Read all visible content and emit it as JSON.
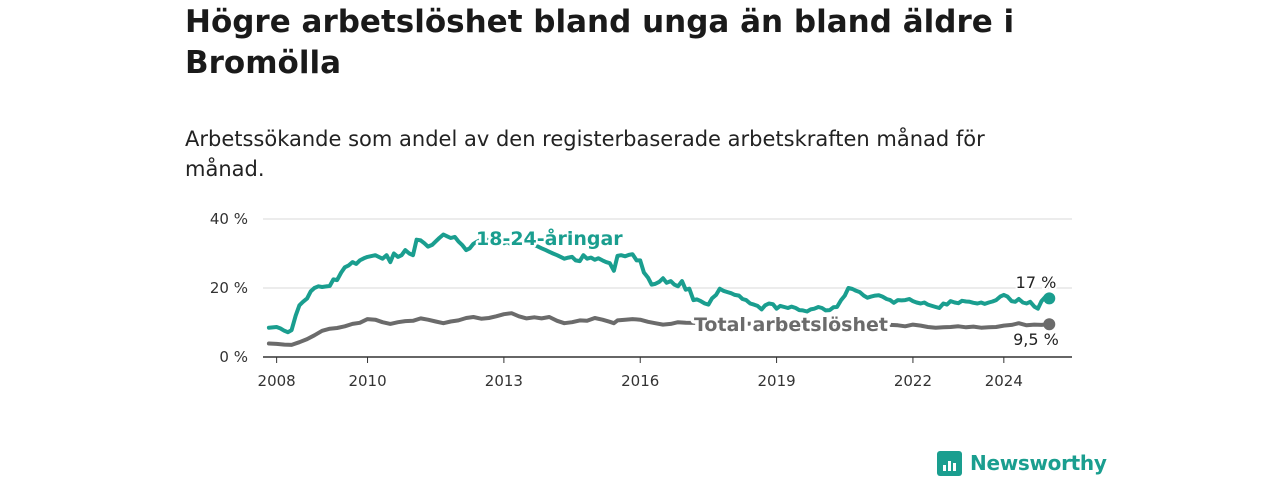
{
  "title": "Högre arbetslöshet bland unga än bland äldre i Bromölla",
  "subtitle": "Arbetssökande som andel av den registerbaserade arbetskraften månad för månad.",
  "brand": {
    "name": "Newsworthy",
    "color": "#1a9e8f"
  },
  "chart_data": {
    "type": "line",
    "title": "Högre arbetslöshet bland unga än bland äldre i Bromölla",
    "xlabel": "",
    "ylabel": "",
    "ylim": [
      0,
      40
    ],
    "xlim": [
      2007.7,
      2025.5
    ],
    "y_ticks": [
      {
        "value": 0,
        "label": "0 %"
      },
      {
        "value": 20,
        "label": "20 %"
      },
      {
        "value": 40,
        "label": "40 %"
      }
    ],
    "x_ticks": [
      {
        "value": 2008,
        "label": "2008"
      },
      {
        "value": 2010,
        "label": "2010"
      },
      {
        "value": 2013,
        "label": "2013"
      },
      {
        "value": 2016,
        "label": "2016"
      },
      {
        "value": 2019,
        "label": "2019"
      },
      {
        "value": 2022,
        "label": "2022"
      },
      {
        "value": 2024,
        "label": "2024"
      }
    ],
    "grid": true,
    "series": [
      {
        "name": "18-24-åringar",
        "color": "#1a9e8f",
        "end_label": "17 %",
        "points": [
          [
            2007.83,
            8.5
          ],
          [
            2008.0,
            8.7
          ],
          [
            2008.08,
            8.3
          ],
          [
            2008.17,
            7.6
          ],
          [
            2008.25,
            7.2
          ],
          [
            2008.33,
            7.8
          ],
          [
            2008.42,
            12
          ],
          [
            2008.5,
            15
          ],
          [
            2008.58,
            16
          ],
          [
            2008.67,
            17
          ],
          [
            2008.75,
            19
          ],
          [
            2008.83,
            20
          ],
          [
            2008.92,
            20.5
          ],
          [
            2009.0,
            20.3
          ],
          [
            2009.17,
            20.6
          ],
          [
            2009.25,
            22.5
          ],
          [
            2009.33,
            22.3
          ],
          [
            2009.42,
            24.5
          ],
          [
            2009.5,
            26
          ],
          [
            2009.58,
            26.5
          ],
          [
            2009.67,
            27.5
          ],
          [
            2009.75,
            27
          ],
          [
            2009.83,
            28
          ],
          [
            2009.92,
            28.6
          ],
          [
            2010.0,
            29
          ],
          [
            2010.17,
            29.5
          ],
          [
            2010.33,
            28.5
          ],
          [
            2010.42,
            29.5
          ],
          [
            2010.5,
            27.5
          ],
          [
            2010.58,
            30
          ],
          [
            2010.67,
            29
          ],
          [
            2010.75,
            29.5
          ],
          [
            2010.83,
            31
          ],
          [
            2010.92,
            30
          ],
          [
            2011.0,
            29.5
          ],
          [
            2011.08,
            34
          ],
          [
            2011.17,
            33.8
          ],
          [
            2011.25,
            33
          ],
          [
            2011.33,
            32
          ],
          [
            2011.42,
            32.5
          ],
          [
            2011.5,
            33.5
          ],
          [
            2011.58,
            34.5
          ],
          [
            2011.67,
            35.5
          ],
          [
            2011.75,
            35
          ],
          [
            2011.83,
            34.5
          ],
          [
            2011.92,
            34.8
          ],
          [
            2012.0,
            33.5
          ],
          [
            2012.08,
            32.5
          ],
          [
            2012.17,
            31
          ],
          [
            2012.25,
            31.5
          ],
          [
            2012.33,
            32.8
          ],
          [
            2012.42,
            33.5
          ],
          [
            2012.5,
            34
          ],
          [
            2012.58,
            34.5
          ],
          [
            2012.67,
            33.5
          ],
          [
            2012.75,
            34
          ],
          [
            2012.83,
            33.2
          ],
          [
            2012.92,
            33.5
          ],
          [
            2013.0,
            33
          ],
          [
            2013.08,
            33.4
          ],
          [
            2013.17,
            32.5
          ],
          [
            2013.25,
            33
          ],
          [
            2013.33,
            33.5
          ],
          [
            2013.42,
            34
          ],
          [
            2013.5,
            34.3
          ],
          [
            2013.58,
            33.5
          ],
          [
            2013.67,
            32.5
          ],
          [
            2013.75,
            32
          ],
          [
            2013.83,
            31.5
          ],
          [
            2013.92,
            31
          ],
          [
            2014.0,
            30.5
          ],
          [
            2014.08,
            30
          ],
          [
            2014.17,
            29.5
          ],
          [
            2014.25,
            29
          ],
          [
            2014.33,
            28.5
          ],
          [
            2014.42,
            28.8
          ],
          [
            2014.5,
            29
          ],
          [
            2014.58,
            28
          ],
          [
            2014.67,
            27.8
          ],
          [
            2014.75,
            29.5
          ],
          [
            2014.83,
            28.5
          ],
          [
            2014.92,
            28.8
          ],
          [
            2015.0,
            28.2
          ],
          [
            2015.08,
            28.6
          ],
          [
            2015.17,
            28
          ],
          [
            2015.25,
            27.5
          ],
          [
            2015.33,
            27.2
          ],
          [
            2015.42,
            25
          ],
          [
            2015.5,
            29.3
          ],
          [
            2015.58,
            29.5
          ],
          [
            2015.67,
            29.2
          ],
          [
            2015.75,
            29.6
          ],
          [
            2015.83,
            29.8
          ],
          [
            2015.92,
            28
          ],
          [
            2016.0,
            28
          ],
          [
            2016.08,
            24.5
          ],
          [
            2016.17,
            23
          ],
          [
            2016.25,
            21
          ],
          [
            2016.33,
            21.2
          ],
          [
            2016.42,
            21.8
          ],
          [
            2016.5,
            22.8
          ],
          [
            2016.58,
            21.5
          ],
          [
            2016.67,
            22
          ],
          [
            2016.75,
            21
          ],
          [
            2016.83,
            20.5
          ],
          [
            2016.92,
            22
          ],
          [
            2017.0,
            19.5
          ],
          [
            2017.08,
            19.8
          ],
          [
            2017.17,
            16.5
          ],
          [
            2017.25,
            16.7
          ],
          [
            2017.33,
            16.2
          ],
          [
            2017.42,
            15.5
          ],
          [
            2017.5,
            15.2
          ],
          [
            2017.58,
            17
          ],
          [
            2017.67,
            18
          ],
          [
            2017.75,
            19.8
          ],
          [
            2017.83,
            19.2
          ],
          [
            2017.92,
            18.8
          ],
          [
            2018.0,
            18.5
          ],
          [
            2018.08,
            18
          ],
          [
            2018.17,
            17.8
          ],
          [
            2018.25,
            16.8
          ],
          [
            2018.33,
            16.5
          ],
          [
            2018.42,
            15.5
          ],
          [
            2018.5,
            15.2
          ],
          [
            2018.58,
            14.8
          ],
          [
            2018.67,
            13.8
          ],
          [
            2018.75,
            15
          ],
          [
            2018.83,
            15.5
          ],
          [
            2018.92,
            15.3
          ],
          [
            2019.0,
            14
          ],
          [
            2019.08,
            14.8
          ],
          [
            2019.17,
            14.5
          ],
          [
            2019.25,
            14.2
          ],
          [
            2019.33,
            14.6
          ],
          [
            2019.42,
            14.2
          ],
          [
            2019.5,
            13.6
          ],
          [
            2019.58,
            13.5
          ],
          [
            2019.67,
            13.2
          ],
          [
            2019.75,
            13.8
          ],
          [
            2019.83,
            14
          ],
          [
            2019.92,
            14.5
          ],
          [
            2020.0,
            14.2
          ],
          [
            2020.08,
            13.5
          ],
          [
            2020.17,
            13.6
          ],
          [
            2020.25,
            14.4
          ],
          [
            2020.33,
            14.5
          ],
          [
            2020.42,
            16.5
          ],
          [
            2020.5,
            17.8
          ],
          [
            2020.58,
            20
          ],
          [
            2020.67,
            19.7
          ],
          [
            2020.75,
            19.2
          ],
          [
            2020.83,
            18.8
          ],
          [
            2020.92,
            17.8
          ],
          [
            2021.0,
            17.2
          ],
          [
            2021.08,
            17.5
          ],
          [
            2021.17,
            17.8
          ],
          [
            2021.25,
            17.9
          ],
          [
            2021.33,
            17.5
          ],
          [
            2021.42,
            16.8
          ],
          [
            2021.5,
            16.5
          ],
          [
            2021.58,
            15.7
          ],
          [
            2021.67,
            16.5
          ],
          [
            2021.75,
            16.4
          ],
          [
            2021.83,
            16.5
          ],
          [
            2021.92,
            16.8
          ],
          [
            2022.0,
            16.2
          ],
          [
            2022.08,
            15.8
          ],
          [
            2022.17,
            15.5
          ],
          [
            2022.25,
            15.8
          ],
          [
            2022.33,
            15.2
          ],
          [
            2022.42,
            14.8
          ],
          [
            2022.5,
            14.5
          ],
          [
            2022.58,
            14.2
          ],
          [
            2022.67,
            15.5
          ],
          [
            2022.75,
            15.2
          ],
          [
            2022.83,
            16.2
          ],
          [
            2022.92,
            15.8
          ],
          [
            2023.0,
            15.6
          ],
          [
            2023.08,
            16.3
          ],
          [
            2023.17,
            16.1
          ],
          [
            2023.25,
            16
          ],
          [
            2023.33,
            15.7
          ],
          [
            2023.42,
            15.5
          ],
          [
            2023.5,
            15.8
          ],
          [
            2023.58,
            15.4
          ],
          [
            2023.67,
            15.8
          ],
          [
            2023.75,
            16.1
          ],
          [
            2023.83,
            16.5
          ],
          [
            2023.92,
            17.5
          ],
          [
            2024.0,
            18
          ],
          [
            2024.08,
            17.5
          ],
          [
            2024.17,
            16.2
          ],
          [
            2024.25,
            16
          ],
          [
            2024.33,
            16.8
          ],
          [
            2024.42,
            15.8
          ],
          [
            2024.5,
            15.5
          ],
          [
            2024.58,
            16
          ],
          [
            2024.67,
            14.6
          ],
          [
            2024.75,
            14
          ],
          [
            2024.83,
            16.2
          ],
          [
            2024.92,
            17.5
          ],
          [
            2025.0,
            17
          ]
        ]
      },
      {
        "name": "Total arbetslöshet",
        "color": "#6b6b6b",
        "end_label": "9,5 %",
        "points": [
          [
            2007.83,
            3.9
          ],
          [
            2008.0,
            3.8
          ],
          [
            2008.17,
            3.6
          ],
          [
            2008.33,
            3.5
          ],
          [
            2008.5,
            4.3
          ],
          [
            2008.67,
            5.2
          ],
          [
            2008.83,
            6.3
          ],
          [
            2009.0,
            7.6
          ],
          [
            2009.17,
            8.2
          ],
          [
            2009.33,
            8.4
          ],
          [
            2009.5,
            8.9
          ],
          [
            2009.67,
            9.6
          ],
          [
            2009.83,
            9.9
          ],
          [
            2010.0,
            11
          ],
          [
            2010.17,
            10.8
          ],
          [
            2010.33,
            10.1
          ],
          [
            2010.5,
            9.6
          ],
          [
            2010.67,
            10.1
          ],
          [
            2010.83,
            10.4
          ],
          [
            2011.0,
            10.5
          ],
          [
            2011.17,
            11.2
          ],
          [
            2011.33,
            10.8
          ],
          [
            2011.5,
            10.3
          ],
          [
            2011.67,
            9.8
          ],
          [
            2011.83,
            10.3
          ],
          [
            2012.0,
            10.6
          ],
          [
            2012.17,
            11.3
          ],
          [
            2012.33,
            11.6
          ],
          [
            2012.5,
            11.1
          ],
          [
            2012.67,
            11.3
          ],
          [
            2012.83,
            11.8
          ],
          [
            2013.0,
            12.4
          ],
          [
            2013.17,
            12.7
          ],
          [
            2013.33,
            11.8
          ],
          [
            2013.5,
            11.2
          ],
          [
            2013.67,
            11.5
          ],
          [
            2013.83,
            11.2
          ],
          [
            2014.0,
            11.6
          ],
          [
            2014.17,
            10.5
          ],
          [
            2014.33,
            9.8
          ],
          [
            2014.5,
            10.1
          ],
          [
            2014.67,
            10.6
          ],
          [
            2014.83,
            10.5
          ],
          [
            2015.0,
            11.3
          ],
          [
            2015.17,
            10.8
          ],
          [
            2015.33,
            10.2
          ],
          [
            2015.42,
            9.8
          ],
          [
            2015.5,
            10.6
          ],
          [
            2015.67,
            10.8
          ],
          [
            2015.83,
            11
          ],
          [
            2016.0,
            10.8
          ],
          [
            2016.17,
            10.2
          ],
          [
            2016.33,
            9.8
          ],
          [
            2016.5,
            9.4
          ],
          [
            2016.67,
            9.6
          ],
          [
            2016.83,
            10.1
          ],
          [
            2017.0,
            9.9
          ],
          [
            2021.25,
            9.1
          ],
          [
            2021.5,
            9.3
          ],
          [
            2021.67,
            9.2
          ],
          [
            2021.83,
            8.9
          ],
          [
            2022.0,
            9.4
          ],
          [
            2022.17,
            9.1
          ],
          [
            2022.33,
            8.7
          ],
          [
            2022.5,
            8.5
          ],
          [
            2022.67,
            8.6
          ],
          [
            2022.83,
            8.7
          ],
          [
            2023.0,
            8.9
          ],
          [
            2023.17,
            8.6
          ],
          [
            2023.33,
            8.8
          ],
          [
            2023.5,
            8.5
          ],
          [
            2023.67,
            8.6
          ],
          [
            2023.83,
            8.7
          ],
          [
            2024.0,
            9.1
          ],
          [
            2024.17,
            9.3
          ],
          [
            2024.33,
            9.8
          ],
          [
            2024.5,
            9.2
          ],
          [
            2024.67,
            9.4
          ],
          [
            2024.83,
            9.3
          ],
          [
            2025.0,
            9.5
          ]
        ]
      }
    ]
  }
}
